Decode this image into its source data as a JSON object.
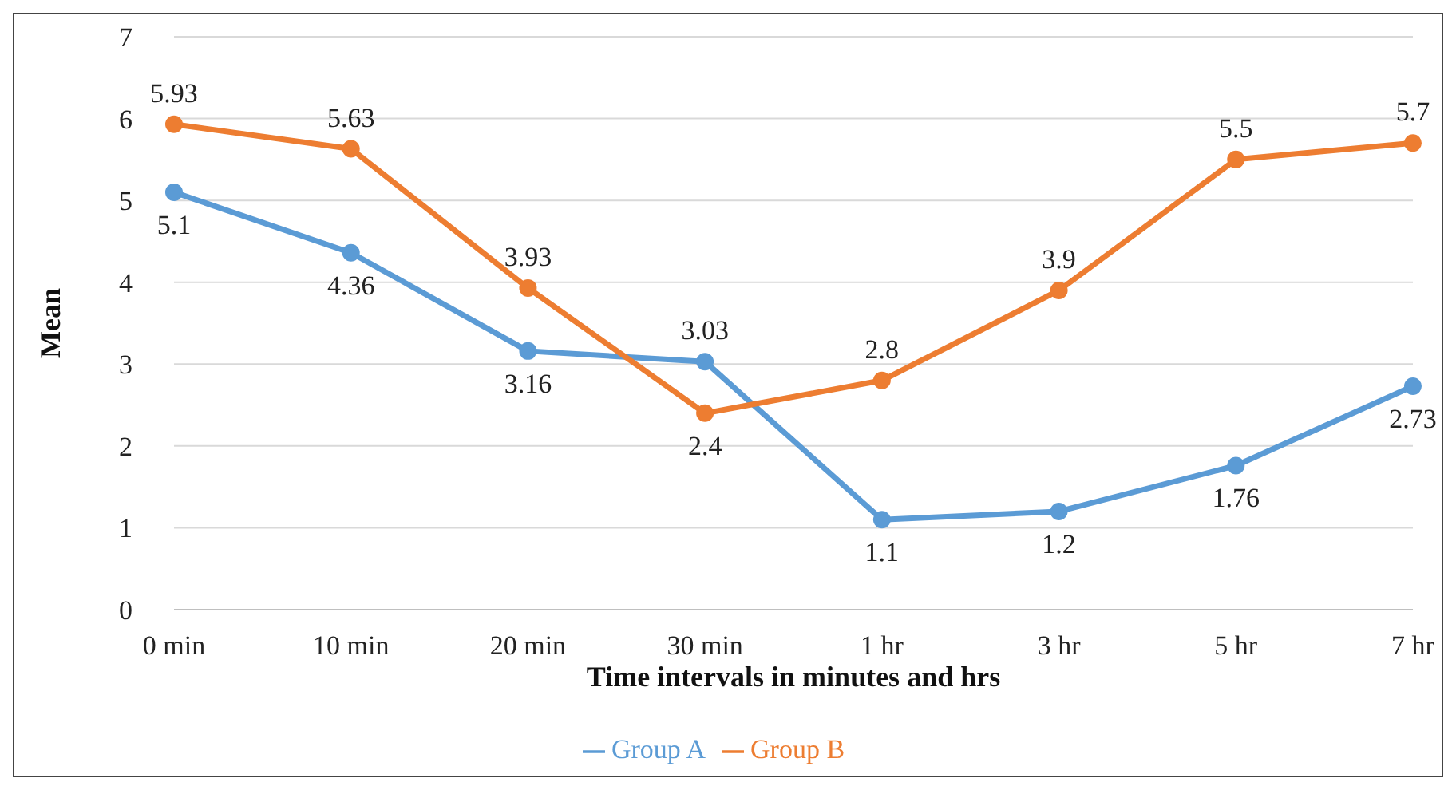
{
  "chart_data": {
    "type": "line",
    "xlabel": "Time intervals in minutes and hrs",
    "ylabel": "Mean",
    "categories": [
      "0 min",
      "10 min",
      "20 min",
      "30 min",
      "1 hr",
      "3 hr",
      "5 hr",
      "7 hr"
    ],
    "series": [
      {
        "name": "Group A",
        "color": "#5b9bd5",
        "values": [
          5.1,
          4.36,
          3.16,
          3.03,
          1.1,
          1.2,
          1.76,
          2.73
        ]
      },
      {
        "name": "Group B",
        "color": "#ed7d31",
        "values": [
          5.93,
          5.63,
          3.93,
          2.4,
          2.8,
          3.9,
          5.5,
          5.7
        ]
      }
    ],
    "ylim": [
      0,
      7
    ],
    "yticks": [
      0,
      1,
      2,
      3,
      4,
      5,
      6,
      7
    ],
    "grid": "y",
    "legend": "bottom",
    "marker": "circle",
    "line_style": "solid",
    "data_labels": true
  }
}
